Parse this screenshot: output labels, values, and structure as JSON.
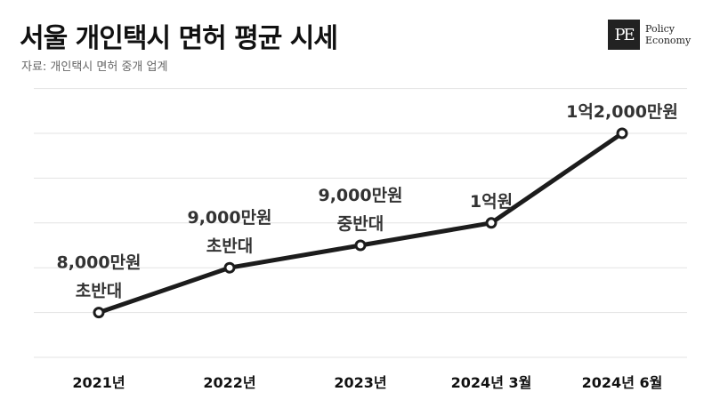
{
  "title": "서울 개인택시 면허 평균 시세",
  "source": "자료: 개인택시 면허 중개 업계",
  "logo": {
    "mark": "PE",
    "line1": "Policy",
    "line2": "Economy"
  },
  "colors": {
    "line": "#1c1c1c",
    "grid": "#e3e3e3",
    "text": "#111111"
  },
  "chart_data": {
    "type": "line",
    "title": "서울 개인택시 면허 평균 시세",
    "categories": [
      "2021년",
      "2022년",
      "2023년",
      "2024년 3월",
      "2024년 6월"
    ],
    "values": [
      8000,
      9000,
      9500,
      10000,
      12000
    ],
    "value_unit": "만원",
    "data_labels": [
      [
        "8,000만원",
        "초반대"
      ],
      [
        "9,000만원",
        "초반대"
      ],
      [
        "9,000만원",
        "중반대"
      ],
      [
        "1억원"
      ],
      [
        "1억2,000만원"
      ]
    ],
    "ylim": [
      7000,
      12000
    ],
    "grid": true,
    "legend": "none",
    "xlabel": "",
    "ylabel": ""
  }
}
